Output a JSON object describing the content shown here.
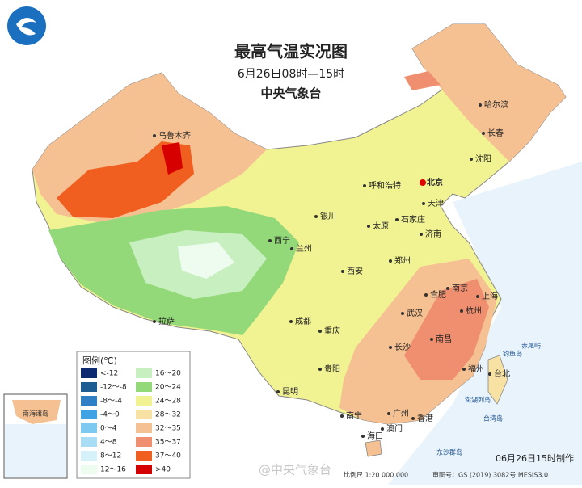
{
  "header": {
    "title": "最高气温实况图",
    "subtitle": "6月26日08时—15时",
    "issuer": "中央气象台"
  },
  "legend": {
    "title": "图例(℃)",
    "items": [
      {
        "label": "<-12",
        "color": "#0b2a6f"
      },
      {
        "label": "-12～-8",
        "color": "#1d5d8f"
      },
      {
        "label": "-8～-4",
        "color": "#2f7fc4"
      },
      {
        "label": "-4～0",
        "color": "#3fa3e3"
      },
      {
        "label": "0～4",
        "color": "#7ccaf1"
      },
      {
        "label": "4～8",
        "color": "#a9dcf5"
      },
      {
        "label": "8～12",
        "color": "#d6f1fa"
      },
      {
        "label": "12～16",
        "color": "#eefbef"
      },
      {
        "label": "16～20",
        "color": "#c8efbf"
      },
      {
        "label": "20～24",
        "color": "#93d97a"
      },
      {
        "label": "24～28",
        "color": "#f1f292"
      },
      {
        "label": "28～32",
        "color": "#f8e2a3"
      },
      {
        "label": "32～35",
        "color": "#f5c092"
      },
      {
        "label": "35～37",
        "color": "#f08f70"
      },
      {
        "label": "37～40",
        "color": "#f05e20"
      },
      {
        "label": ">40",
        "color": "#d70000"
      }
    ]
  },
  "cities": [
    "乌鲁木齐",
    "哈尔滨",
    "长春",
    "沈阳",
    "北京",
    "天津",
    "呼和浩特",
    "石家庄",
    "太原",
    "济南",
    "银川",
    "西宁",
    "兰州",
    "郑州",
    "西安",
    "南京",
    "合肥",
    "上海",
    "杭州",
    "武汉",
    "成都",
    "拉萨",
    "重庆",
    "长沙",
    "南昌",
    "福州",
    "贵阳",
    "台北",
    "昆明",
    "南宁",
    "广州",
    "澳门",
    "香港",
    "海口"
  ],
  "places": [
    "钓鱼岛",
    "赤尾屿",
    "澎湖列岛",
    "台湾岛",
    "东沙群岛"
  ],
  "inset": {
    "label": "南海诸岛"
  },
  "footer": {
    "made": "06月26日15时制作",
    "scale": "比例尺 1:20 000 000",
    "approval": "审图号：GS (2019) 3082号 MESIS3.0",
    "watermark": "@中央气象台"
  }
}
